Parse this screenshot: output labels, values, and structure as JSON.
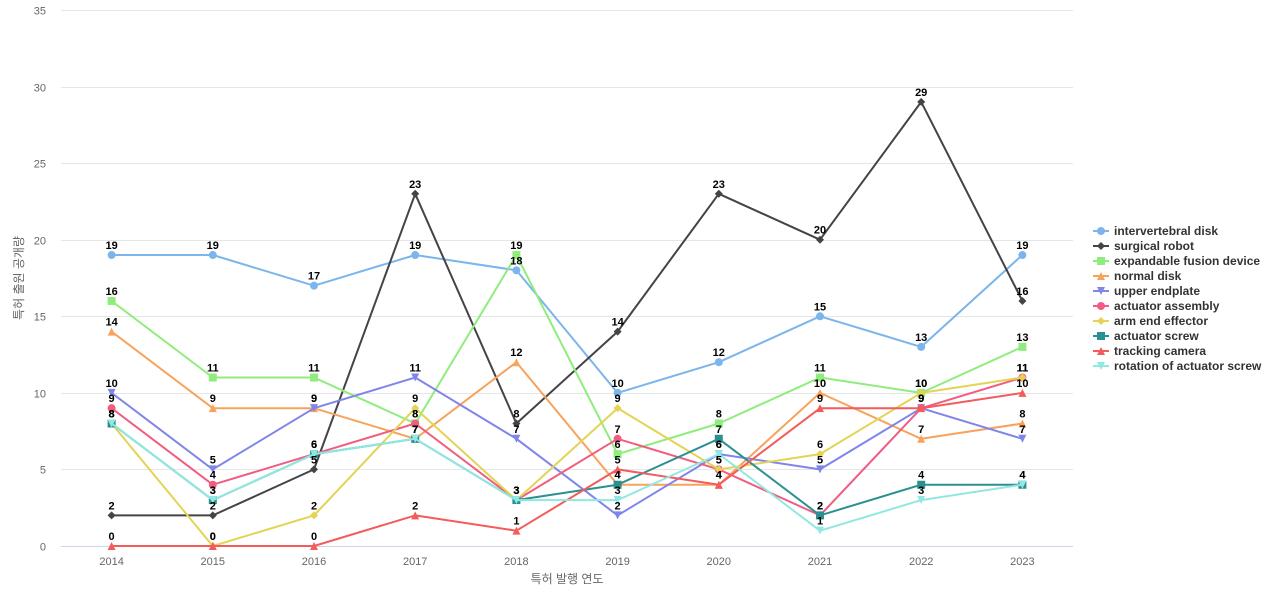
{
  "chart_data": {
    "type": "line",
    "title": "",
    "xlabel": "특허 발행 연도",
    "ylabel": "특허 출원 공개량",
    "ylim": [
      0,
      35
    ],
    "yticks": [
      "0",
      "5",
      "10",
      "15",
      "20",
      "25",
      "30",
      "35"
    ],
    "grid": true,
    "legend_position": "right",
    "categories": [
      "2014",
      "2015",
      "2016",
      "2017",
      "2018",
      "2019",
      "2020",
      "2021",
      "2022",
      "2023"
    ],
    "series": [
      {
        "name": "intervertebral disk",
        "color": "#7cb5ec",
        "marker": "circle",
        "values": [
          19,
          19,
          17,
          19,
          18,
          10,
          12,
          15,
          13,
          19
        ]
      },
      {
        "name": "surgical robot",
        "color": "#434348",
        "marker": "diamond",
        "values": [
          2,
          2,
          5,
          23,
          8,
          14,
          23,
          20,
          29,
          16
        ]
      },
      {
        "name": "expandable fusion device",
        "color": "#90ed7d",
        "marker": "square",
        "values": [
          16,
          11,
          11,
          8,
          19,
          6,
          8,
          11,
          10,
          13
        ]
      },
      {
        "name": "normal disk",
        "color": "#f7a35c",
        "marker": "triangle",
        "values": [
          14,
          9,
          9,
          7,
          12,
          4,
          4,
          10,
          7,
          8
        ]
      },
      {
        "name": "upper endplate",
        "color": "#8085e9",
        "marker": "triangle-down",
        "values": [
          10,
          5,
          9,
          11,
          7,
          2,
          6,
          5,
          9,
          7
        ]
      },
      {
        "name": "actuator assembly",
        "color": "#f15c80",
        "marker": "circle",
        "values": [
          9,
          4,
          6,
          8,
          3,
          7,
          5,
          2,
          9,
          11
        ]
      },
      {
        "name": "arm end effector",
        "color": "#e4d354",
        "marker": "diamond",
        "values": [
          8,
          0,
          2,
          9,
          3,
          9,
          5,
          6,
          10,
          11
        ]
      },
      {
        "name": "actuator screw",
        "color": "#2b908f",
        "marker": "square",
        "values": [
          8,
          3,
          6,
          7,
          3,
          4,
          7,
          2,
          4,
          4
        ]
      },
      {
        "name": "tracking camera",
        "color": "#f45b5b",
        "marker": "triangle",
        "values": [
          0,
          0,
          0,
          2,
          1,
          5,
          4,
          9,
          9,
          10
        ]
      },
      {
        "name": "rotation of actuator screw",
        "color": "#91e8e1",
        "marker": "triangle-down",
        "values": [
          8,
          3,
          6,
          7,
          3,
          3,
          6,
          1,
          3,
          4
        ]
      }
    ]
  }
}
